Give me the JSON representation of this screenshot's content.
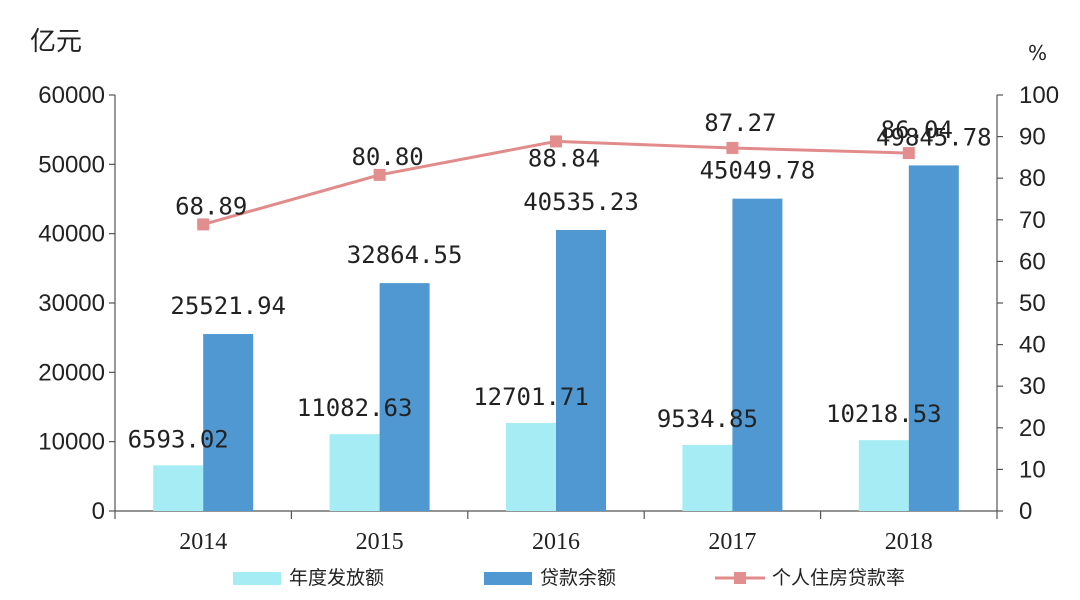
{
  "units": {
    "left": "亿元",
    "right": "%"
  },
  "colors": {
    "annual": "#a6ecf5",
    "balance": "#4f98d2",
    "rate": "#e28b8b",
    "rate_marker": "#e38e8e"
  },
  "chart_data": {
    "type": "bar",
    "categories": [
      "2014",
      "2015",
      "2016",
      "2017",
      "2018"
    ],
    "series": [
      {
        "name": "年度发放额",
        "type": "bar",
        "axis": "left",
        "values": [
          6593.02,
          11082.63,
          12701.71,
          9534.85,
          10218.53
        ],
        "labels": [
          "6593.02",
          "11082.63",
          "12701.71",
          "9534.85",
          "10218.53"
        ]
      },
      {
        "name": "贷款余额",
        "type": "bar",
        "axis": "left",
        "values": [
          25521.94,
          32864.55,
          40535.23,
          45049.78,
          49845.78
        ],
        "labels": [
          "25521.94",
          "32864.55",
          "40535.23",
          "45049.78",
          "49845.78"
        ]
      },
      {
        "name": "个人住房贷款率",
        "type": "line",
        "axis": "right",
        "values": [
          68.89,
          80.8,
          88.84,
          87.27,
          86.04
        ],
        "labels": [
          "68.89",
          "80.80",
          "88.84",
          "87.27",
          "86.04"
        ]
      }
    ],
    "y_left": {
      "range": [
        0,
        60000
      ],
      "ticks": [
        "0",
        "10000",
        "20000",
        "30000",
        "40000",
        "50000",
        "60000"
      ]
    },
    "y_right": {
      "range": [
        0,
        100
      ],
      "ticks": [
        "0",
        "10",
        "20",
        "30",
        "40",
        "50",
        "60",
        "70",
        "80",
        "90",
        "100"
      ]
    },
    "grid": false,
    "legend": "bottom"
  }
}
